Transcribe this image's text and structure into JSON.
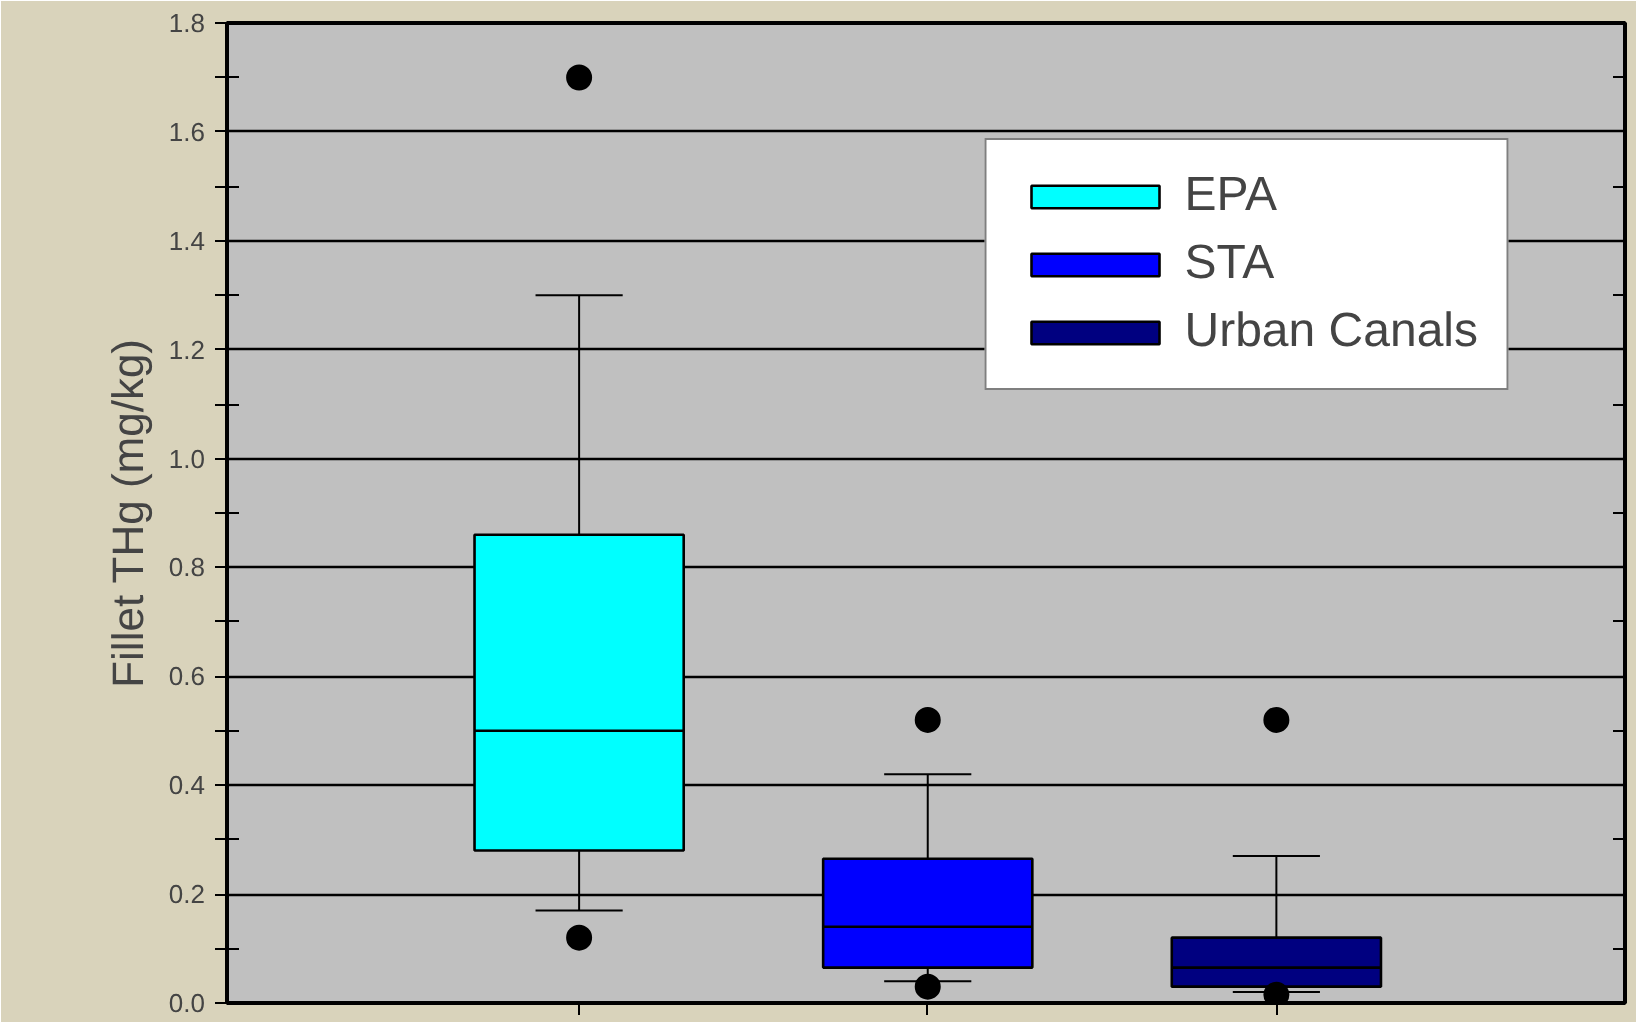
{
  "chart_data": {
    "type": "box",
    "ylabel": "Fillet THg (mg/kg)",
    "categories": [
      null,
      null,
      null
    ],
    "series": [
      {
        "name": "EPA",
        "color": "#00ffff",
        "boxes": [
          {
            "low": 0.17,
            "q1": 0.28,
            "median": 0.5,
            "q3": 0.86,
            "high": 1.3,
            "outliers": [
              1.7,
              0.12
            ]
          },
          null,
          null
        ]
      },
      {
        "name": "STA",
        "color": "#0000ff",
        "boxes": [
          null,
          {
            "low": 0.04,
            "q1": 0.065,
            "median": 0.14,
            "q3": 0.265,
            "high": 0.42,
            "outliers": [
              0.52,
              0.03
            ]
          },
          null
        ]
      },
      {
        "name": "Urban Canals",
        "color": "#000080",
        "boxes": [
          null,
          null,
          {
            "low": 0.02,
            "q1": 0.03,
            "median": 0.065,
            "q3": 0.12,
            "high": 0.27,
            "outliers": [
              0.52,
              0.015
            ]
          }
        ]
      }
    ],
    "ylim": [
      0,
      1.8
    ],
    "yticks": [
      {
        "value": 0,
        "label": "0.0"
      },
      {
        "value": 0.1,
        "label": null
      },
      {
        "value": 0.2,
        "label": "0.2"
      },
      {
        "value": 0.3,
        "label": null
      },
      {
        "value": 0.4,
        "label": "0.4"
      },
      {
        "value": 0.5,
        "label": null
      },
      {
        "value": 0.6,
        "label": "0.6"
      },
      {
        "value": 0.7,
        "label": null
      },
      {
        "value": 0.8,
        "label": "0.8"
      },
      {
        "value": 0.9,
        "label": null
      },
      {
        "value": 1.0,
        "label": "1.0"
      },
      {
        "value": 1.1,
        "label": null
      },
      {
        "value": 1.2,
        "label": "1.2"
      },
      {
        "value": 1.3,
        "label": null
      },
      {
        "value": 1.4,
        "label": "1.4"
      },
      {
        "value": 1.5,
        "label": null
      },
      {
        "value": 1.6,
        "label": "1.6"
      },
      {
        "value": 1.7,
        "label": null
      },
      {
        "value": 1.8,
        "label": "1.8"
      }
    ],
    "grid": "y",
    "legend": "top right"
  }
}
